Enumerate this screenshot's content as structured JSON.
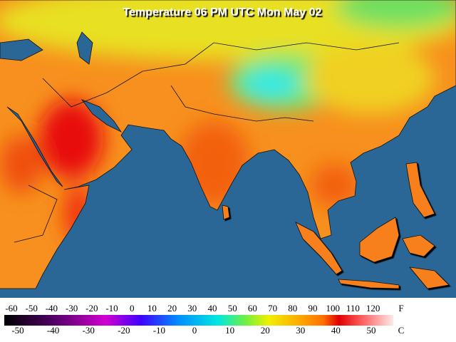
{
  "title": "Temperature 06 PM UTC Mon May 02",
  "legend": {
    "fahrenheit": {
      "unit": "F",
      "labels": [
        -60,
        -50,
        -40,
        -30,
        -20,
        -10,
        0,
        10,
        20,
        30,
        40,
        50,
        60,
        70,
        80,
        90,
        100,
        110,
        120
      ]
    },
    "celsius": {
      "unit": "C",
      "labels": [
        -50,
        -40,
        -30,
        -20,
        -10,
        0,
        10,
        20,
        30,
        40,
        50
      ]
    }
  }
}
